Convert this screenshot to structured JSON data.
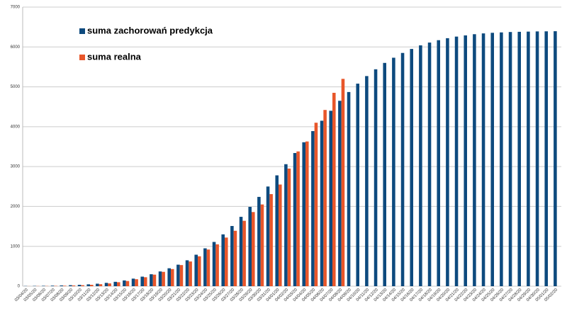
{
  "chart_data": {
    "type": "bar",
    "categories": [
      "03/04/20",
      "03/05/20",
      "03/06/20",
      "03/07/20",
      "03/08/20",
      "03/09/20",
      "03/10/20",
      "03/11/20",
      "03/12/20",
      "03/13/20",
      "03/14/20",
      "03/15/20",
      "03/16/20",
      "03/17/20",
      "03/18/20",
      "03/19/20",
      "03/20/20",
      "03/21/20",
      "03/22/20",
      "03/23/20",
      "03/24/20",
      "03/25/20",
      "03/26/20",
      "03/27/20",
      "03/28/20",
      "03/29/20",
      "03/30/20",
      "03/31/20",
      "04/01/20",
      "04/02/20",
      "04/03/20",
      "04/04/20",
      "04/05/20",
      "04/06/20",
      "04/07/20",
      "04/08/20",
      "04/09/20",
      "04/10/20",
      "04/11/20",
      "04/12/20",
      "04/13/20",
      "04/14/20",
      "04/15/20",
      "04/16/20",
      "04/17/20",
      "04/18/20",
      "04/19/20",
      "04/20/20",
      "04/21/20",
      "04/22/20",
      "04/23/20",
      "04/24/20",
      "04/25/20",
      "04/26/20",
      "04/27/20",
      "04/28/20",
      "04/29/20",
      "04/30/20",
      "05/01/20",
      "05/02/20"
    ],
    "series": [
      {
        "name": "suma zachorowań predykcja",
        "color": "#0d4a7e",
        "values": [
          5,
          7,
          10,
          14,
          19,
          26,
          35,
          47,
          63,
          84,
          110,
          145,
          190,
          240,
          300,
          370,
          450,
          540,
          650,
          790,
          950,
          1110,
          1300,
          1510,
          1740,
          1990,
          2240,
          2500,
          2780,
          3060,
          3340,
          3610,
          3890,
          4150,
          4400,
          4650,
          4870,
          5080,
          5270,
          5440,
          5600,
          5730,
          5850,
          5950,
          6040,
          6110,
          6170,
          6220,
          6260,
          6290,
          6320,
          6340,
          6355,
          6365,
          6375,
          6380,
          6385,
          6390,
          6392,
          6395
        ]
      },
      {
        "name": "suma realna",
        "color": "#e8562a",
        "values": [
          2,
          4,
          5,
          8,
          12,
          18,
          25,
          35,
          50,
          70,
          100,
          130,
          175,
          225,
          290,
          360,
          430,
          530,
          620,
          750,
          920,
          1050,
          1220,
          1390,
          1640,
          1860,
          2050,
          2310,
          2550,
          2950,
          3380,
          3630,
          4100,
          4420,
          4850,
          5200,
          null,
          null,
          null,
          null,
          null,
          null,
          null,
          null,
          null,
          null,
          null,
          null,
          null,
          null,
          null,
          null,
          null,
          null,
          null,
          null,
          null,
          null,
          null,
          null
        ]
      }
    ],
    "ylim": [
      0,
      7000
    ],
    "yticks": [
      0,
      1000,
      2000,
      3000,
      4000,
      5000,
      6000,
      7000
    ],
    "grid": true
  }
}
